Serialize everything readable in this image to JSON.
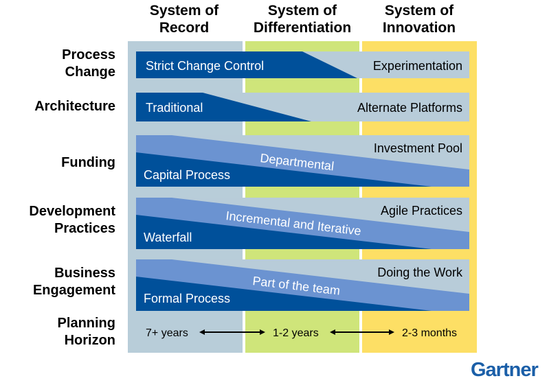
{
  "columns": [
    {
      "line1": "System of",
      "line2": "Record",
      "color": "#b8cdd9"
    },
    {
      "line1": "System of",
      "line2": "Differentiation",
      "color": "#cfe57a"
    },
    {
      "line1": "System of",
      "line2": "Innovation",
      "color": "#fddf65"
    }
  ],
  "rows": [
    {
      "line1": "Process",
      "line2": "Change",
      "from": "Strict Change Control",
      "to": "Experimentation"
    },
    {
      "line1": "Architecture",
      "from": "Traditional",
      "to": "Alternate Platforms"
    },
    {
      "line1": "Funding",
      "from": "Capital Process",
      "middle": "Departmental",
      "to": "Investment Pool"
    },
    {
      "line1": "Development",
      "line2": "Practices",
      "from": "Waterfall",
      "middle": "Incremental and Iterative",
      "to": "Agile Practices"
    },
    {
      "line1": "Business",
      "line2": "Engagement",
      "from": "Formal Process",
      "middle": "Part of the team",
      "to": "Doing the Work"
    },
    {
      "line1": "Planning",
      "line2": "Horizon"
    }
  ],
  "planning": [
    "7+ years",
    "1-2 years",
    "2-3 months"
  ],
  "logo": "Gartner",
  "colors": {
    "dark_blue": "#00509a",
    "mid_blue": "#6b93d1",
    "light_blue": "#b8ccd9",
    "logo": "#1b5fa8"
  }
}
